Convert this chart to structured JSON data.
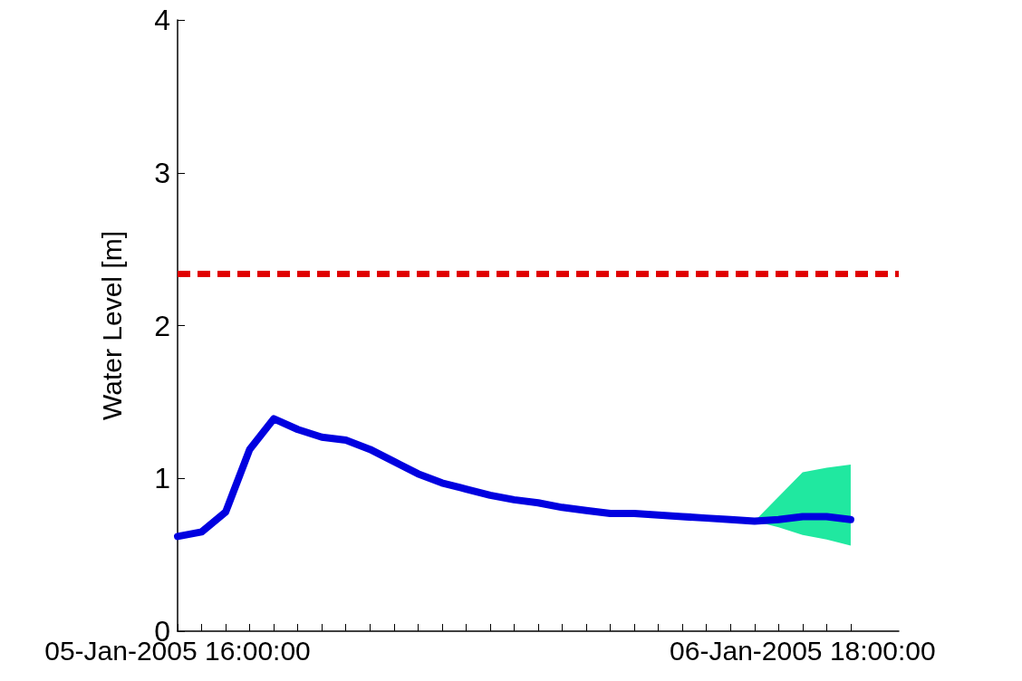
{
  "chart_data": {
    "type": "line",
    "ylabel": "Water Level [m]",
    "xlim": [
      "2005-01-05T16:00",
      "2005-01-06T22:00"
    ],
    "xticks": [
      {
        "value": "2005-01-05T16:00",
        "label": "05-Jan-2005 16:00:00"
      },
      {
        "value": "2005-01-05T17:00",
        "label": null
      },
      {
        "value": "2005-01-05T18:00",
        "label": null
      },
      {
        "value": "2005-01-05T19:00",
        "label": null
      },
      {
        "value": "2005-01-05T20:00",
        "label": null
      },
      {
        "value": "2005-01-05T21:00",
        "label": null
      },
      {
        "value": "2005-01-05T22:00",
        "label": null
      },
      {
        "value": "2005-01-05T23:00",
        "label": null
      },
      {
        "value": "2005-01-06T00:00",
        "label": null
      },
      {
        "value": "2005-01-06T01:00",
        "label": null
      },
      {
        "value": "2005-01-06T02:00",
        "label": null
      },
      {
        "value": "2005-01-06T03:00",
        "label": null
      },
      {
        "value": "2005-01-06T04:00",
        "label": null
      },
      {
        "value": "2005-01-06T05:00",
        "label": null
      },
      {
        "value": "2005-01-06T06:00",
        "label": null
      },
      {
        "value": "2005-01-06T07:00",
        "label": null
      },
      {
        "value": "2005-01-06T08:00",
        "label": null
      },
      {
        "value": "2005-01-06T09:00",
        "label": null
      },
      {
        "value": "2005-01-06T10:00",
        "label": null
      },
      {
        "value": "2005-01-06T11:00",
        "label": null
      },
      {
        "value": "2005-01-06T12:00",
        "label": null
      },
      {
        "value": "2005-01-06T13:00",
        "label": null
      },
      {
        "value": "2005-01-06T14:00",
        "label": null
      },
      {
        "value": "2005-01-06T15:00",
        "label": null
      },
      {
        "value": "2005-01-06T16:00",
        "label": null
      },
      {
        "value": "2005-01-06T17:00",
        "label": null
      },
      {
        "value": "2005-01-06T18:00",
        "label": "06-Jan-2005 18:00:00"
      },
      {
        "value": "2005-01-06T19:00",
        "label": null
      },
      {
        "value": "2005-01-06T20:00",
        "label": null
      }
    ],
    "ylim": [
      0,
      4
    ],
    "yticks": [
      0,
      1,
      2,
      3,
      4
    ],
    "grid": false,
    "legend": false,
    "line_style": "solid",
    "series": [
      {
        "color": "#0000e0",
        "x": [
          "2005-01-05T16:00",
          "2005-01-05T17:00",
          "2005-01-05T18:00",
          "2005-01-05T19:00",
          "2005-01-05T20:00",
          "2005-01-05T21:00",
          "2005-01-05T22:00",
          "2005-01-05T23:00",
          "2005-01-06T00:00",
          "2005-01-06T01:00",
          "2005-01-06T02:00",
          "2005-01-06T03:00",
          "2005-01-06T04:00",
          "2005-01-06T05:00",
          "2005-01-06T06:00",
          "2005-01-06T07:00",
          "2005-01-06T08:00",
          "2005-01-06T09:00",
          "2005-01-06T10:00",
          "2005-01-06T11:00",
          "2005-01-06T12:00",
          "2005-01-06T13:00",
          "2005-01-06T14:00",
          "2005-01-06T15:00",
          "2005-01-06T16:00",
          "2005-01-06T17:00",
          "2005-01-06T18:00",
          "2005-01-06T19:00",
          "2005-01-06T20:00"
        ],
        "values": [
          0.62,
          0.65,
          0.78,
          1.19,
          1.39,
          1.32,
          1.27,
          1.25,
          1.19,
          1.11,
          1.03,
          0.97,
          0.93,
          0.89,
          0.86,
          0.84,
          0.81,
          0.79,
          0.77,
          0.77,
          0.76,
          0.75,
          0.74,
          0.73,
          0.72,
          0.73,
          0.75,
          0.75,
          0.73
        ],
        "lower": [
          null,
          null,
          null,
          null,
          null,
          null,
          null,
          null,
          null,
          null,
          null,
          null,
          null,
          null,
          null,
          null,
          null,
          null,
          null,
          null,
          null,
          null,
          null,
          null,
          0.72,
          0.68,
          0.63,
          0.6,
          0.56
        ],
        "upper": [
          null,
          null,
          null,
          null,
          null,
          null,
          null,
          null,
          null,
          null,
          null,
          null,
          null,
          null,
          null,
          null,
          null,
          null,
          null,
          null,
          null,
          null,
          null,
          null,
          0.72,
          0.88,
          1.04,
          1.07,
          1.09
        ]
      }
    ],
    "ref_lines": [
      {
        "axis": "y",
        "value": 2.34,
        "color": "#e00000",
        "line_style": "dashed"
      }
    ]
  }
}
